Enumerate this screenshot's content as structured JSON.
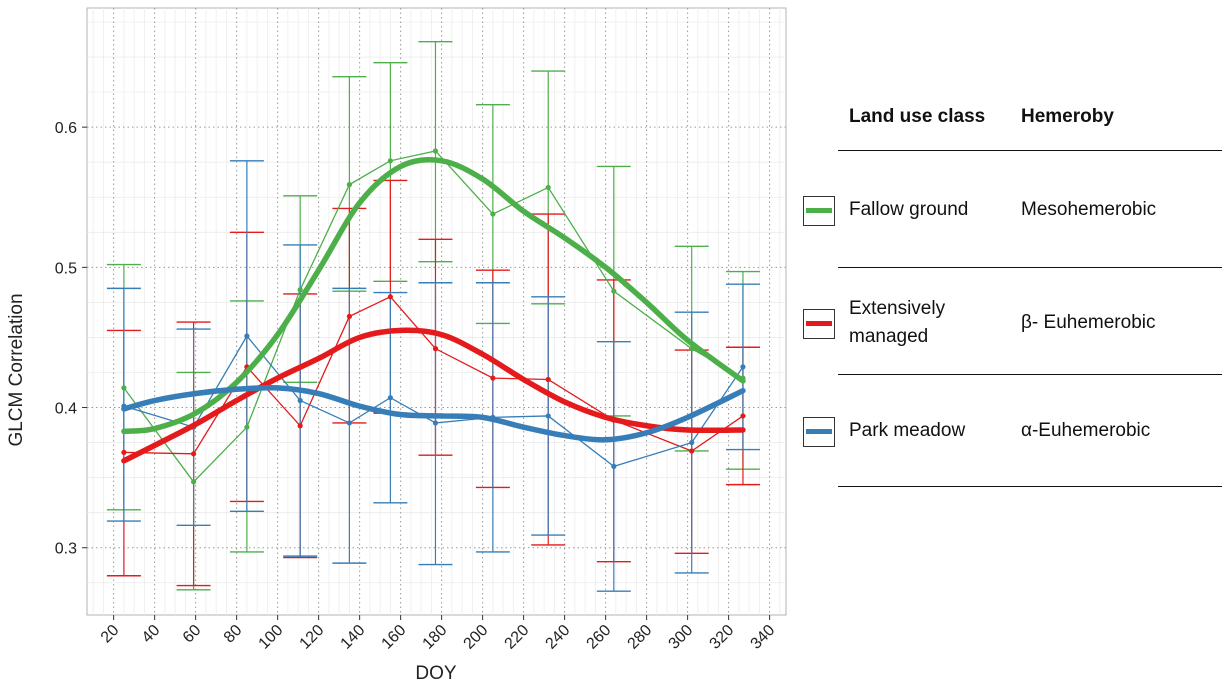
{
  "chart_data": {
    "type": "line",
    "xlabel": "DOY",
    "ylabel": "GLCM Correlation",
    "xlim": [
      7,
      348
    ],
    "ylim": [
      0.252,
      0.685
    ],
    "x_ticks": [
      20,
      40,
      60,
      80,
      100,
      120,
      140,
      160,
      180,
      200,
      220,
      240,
      260,
      280,
      300,
      320,
      340
    ],
    "y_ticks": [
      0.3,
      0.4,
      0.5,
      0.6
    ],
    "y_tick_labels": [
      "0.3",
      "0.4",
      "0.5",
      "0.6"
    ],
    "grid": true,
    "legend_placement": "right",
    "series": [
      {
        "name": "Fallow ground",
        "color": "#4daf4a",
        "x": [
          25,
          59,
          85,
          111,
          135,
          155,
          177,
          205,
          232,
          264,
          302,
          327
        ],
        "y": [
          0.414,
          0.347,
          0.386,
          0.484,
          0.559,
          0.576,
          0.583,
          0.538,
          0.557,
          0.483,
          0.442,
          0.421
        ],
        "err_low": [
          0.327,
          0.27,
          0.297,
          0.418,
          0.483,
          0.49,
          0.504,
          0.46,
          0.474,
          0.394,
          0.369,
          0.356
        ],
        "err_high": [
          0.502,
          0.425,
          0.476,
          0.551,
          0.636,
          0.646,
          0.661,
          0.616,
          0.64,
          0.572,
          0.515,
          0.497
        ],
        "smooth_x": [
          25,
          40,
          60,
          80,
          100,
          120,
          140,
          160,
          180,
          200,
          220,
          240,
          260,
          280,
          300,
          327
        ],
        "smooth_y": [
          0.383,
          0.385,
          0.396,
          0.418,
          0.452,
          0.498,
          0.546,
          0.572,
          0.576,
          0.563,
          0.54,
          0.521,
          0.5,
          0.475,
          0.448,
          0.419
        ]
      },
      {
        "name": "Extensively managed",
        "color": "#e41a1c",
        "x": [
          25,
          59,
          85,
          111,
          135,
          155,
          177,
          205,
          232,
          264,
          302,
          327
        ],
        "y": [
          0.368,
          0.367,
          0.429,
          0.387,
          0.465,
          0.479,
          0.442,
          0.421,
          0.42,
          0.391,
          0.369,
          0.394
        ],
        "err_low": [
          0.28,
          0.273,
          0.333,
          0.293,
          0.389,
          0.396,
          0.366,
          0.343,
          0.302,
          0.29,
          0.296,
          0.345
        ],
        "err_high": [
          0.455,
          0.461,
          0.525,
          0.481,
          0.542,
          0.562,
          0.52,
          0.498,
          0.538,
          0.491,
          0.441,
          0.443
        ],
        "smooth_x": [
          25,
          40,
          60,
          80,
          100,
          120,
          140,
          160,
          180,
          200,
          220,
          240,
          260,
          280,
          300,
          327
        ],
        "smooth_y": [
          0.362,
          0.373,
          0.388,
          0.405,
          0.421,
          0.435,
          0.45,
          0.455,
          0.452,
          0.438,
          0.42,
          0.404,
          0.393,
          0.387,
          0.384,
          0.384
        ]
      },
      {
        "name": "Park meadow",
        "color": "#377eb8",
        "x": [
          25,
          59,
          85,
          111,
          135,
          155,
          177,
          205,
          232,
          264,
          302,
          327
        ],
        "y": [
          0.401,
          0.386,
          0.451,
          0.405,
          0.389,
          0.407,
          0.389,
          0.393,
          0.394,
          0.358,
          0.375,
          0.429
        ],
        "err_low": [
          0.319,
          0.316,
          0.326,
          0.294,
          0.289,
          0.332,
          0.288,
          0.297,
          0.309,
          0.269,
          0.282,
          0.37
        ],
        "err_high": [
          0.485,
          0.456,
          0.576,
          0.516,
          0.485,
          0.482,
          0.489,
          0.489,
          0.479,
          0.447,
          0.468,
          0.488
        ],
        "smooth_x": [
          25,
          40,
          60,
          80,
          100,
          120,
          140,
          160,
          180,
          200,
          220,
          240,
          260,
          280,
          300,
          327
        ],
        "smooth_y": [
          0.399,
          0.405,
          0.41,
          0.413,
          0.414,
          0.41,
          0.401,
          0.395,
          0.394,
          0.393,
          0.386,
          0.38,
          0.377,
          0.382,
          0.393,
          0.412
        ]
      }
    ]
  },
  "legend": {
    "header_class": "Land use class",
    "header_hemeroby": "Hemeroby",
    "rows": [
      {
        "label_line1": "Fallow ground",
        "label_line2": "",
        "hemeroby": "Mesohemerobic",
        "color": "#4daf4a"
      },
      {
        "label_line1": "Extensively",
        "label_line2": "managed",
        "hemeroby": "β- Euhemerobic",
        "color": "#e41a1c"
      },
      {
        "label_line1": "Park meadow",
        "label_line2": "",
        "hemeroby": "α-Euhemerobic",
        "color": "#377eb8"
      }
    ]
  }
}
